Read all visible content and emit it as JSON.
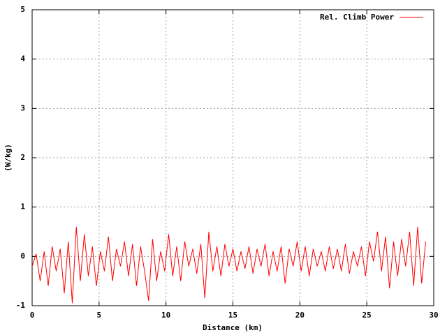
{
  "chart_data": {
    "type": "line",
    "x_label": "Distance (km)",
    "y_label": "(W/kg)",
    "x": [
      0,
      0.3,
      0.6,
      0.9,
      1.2,
      1.5,
      1.8,
      2.1,
      2.4,
      2.7,
      3,
      3.3,
      3.6,
      3.9,
      4.2,
      4.5,
      4.8,
      5.1,
      5.4,
      5.7,
      6,
      6.3,
      6.6,
      6.9,
      7.2,
      7.5,
      7.8,
      8.1,
      8.4,
      8.7,
      9,
      9.3,
      9.6,
      9.9,
      10.2,
      10.5,
      10.8,
      11.1,
      11.4,
      11.7,
      12,
      12.3,
      12.6,
      12.9,
      13.2,
      13.5,
      13.8,
      14.1,
      14.4,
      14.7,
      15,
      15.3,
      15.6,
      15.9,
      16.2,
      16.5,
      16.8,
      17.1,
      17.4,
      17.7,
      18,
      18.3,
      18.6,
      18.9,
      19.2,
      19.5,
      19.8,
      20.1,
      20.4,
      20.7,
      21,
      21.3,
      21.6,
      21.9,
      22.2,
      22.5,
      22.8,
      23.1,
      23.4,
      23.7,
      24,
      24.3,
      24.6,
      24.9,
      25.2,
      25.5,
      25.8,
      26.1,
      26.4,
      26.7,
      27,
      27.3,
      27.6,
      27.9,
      28.2,
      28.5,
      28.8,
      29.1,
      29.4
    ],
    "series": [
      {
        "name": "Rel. Climb Power",
        "color": "#ff0000",
        "values": [
          -0.2,
          0.05,
          -0.5,
          0.1,
          -0.6,
          0.2,
          -0.3,
          0.15,
          -0.75,
          0.3,
          -0.95,
          0.6,
          -0.5,
          0.45,
          -0.4,
          0.2,
          -0.6,
          0.1,
          -0.3,
          0.4,
          -0.5,
          0.15,
          -0.2,
          0.3,
          -0.4,
          0.25,
          -0.6,
          0.2,
          -0.3,
          -0.9,
          0.35,
          -0.5,
          0.1,
          -0.3,
          0.45,
          -0.4,
          0.2,
          -0.5,
          0.3,
          -0.2,
          0.15,
          -0.35,
          0.25,
          -0.85,
          0.5,
          -0.3,
          0.2,
          -0.4,
          0.25,
          -0.2,
          0.15,
          -0.3,
          0.1,
          -0.25,
          0.2,
          -0.35,
          0.15,
          -0.2,
          0.25,
          -0.4,
          0.1,
          -0.3,
          0.2,
          -0.55,
          0.15,
          -0.2,
          0.3,
          -0.3,
          0.2,
          -0.4,
          0.15,
          -0.2,
          0.1,
          -0.3,
          0.2,
          -0.25,
          0.15,
          -0.3,
          0.25,
          -0.35,
          0.1,
          -0.2,
          0.2,
          -0.4,
          0.3,
          -0.1,
          0.5,
          -0.3,
          0.4,
          -0.65,
          0.3,
          -0.4,
          0.35,
          -0.2,
          0.5,
          -0.6,
          0.6,
          -0.55,
          0.3
        ]
      }
    ],
    "xlim": [
      0,
      30
    ],
    "xticks": [
      0,
      5,
      10,
      15,
      20,
      25,
      30
    ],
    "ylim": [
      -1,
      5
    ],
    "yticks": [
      -1,
      0,
      1,
      2,
      3,
      4,
      5
    ],
    "grid": true,
    "legend": "top-right"
  }
}
